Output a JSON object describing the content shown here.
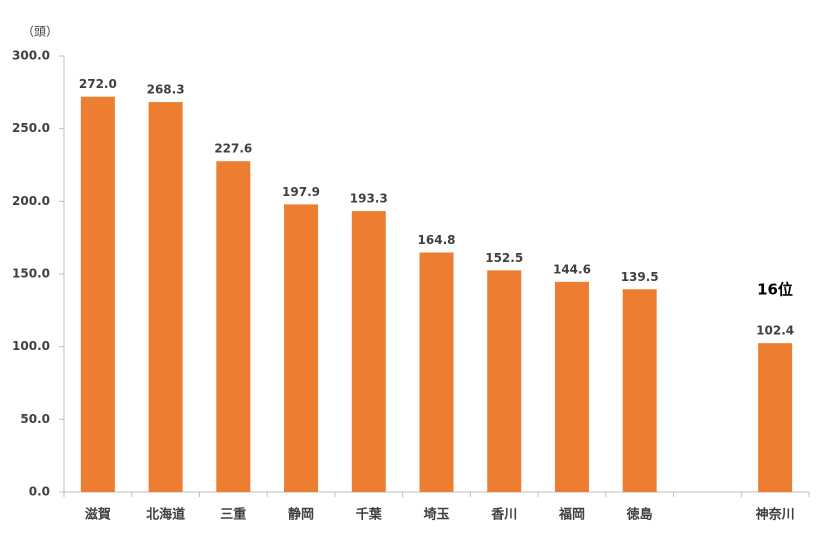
{
  "chart_data": {
    "type": "bar",
    "y_unit_label": "（頭）",
    "annotation": "16位",
    "categories": [
      "滋賀",
      "北海道",
      "三重",
      "静岡",
      "千葉",
      "埼玉",
      "香川",
      "福岡",
      "徳島",
      null,
      "神奈川"
    ],
    "values": [
      272.0,
      268.3,
      227.6,
      197.9,
      193.3,
      164.8,
      152.5,
      144.6,
      139.5,
      null,
      102.4
    ],
    "value_labels": [
      "272.0",
      "268.3",
      "227.6",
      "197.9",
      "193.3",
      "164.8",
      "152.5",
      "144.6",
      "139.5",
      null,
      "102.4"
    ],
    "color": "#ed7d31",
    "ylim": [
      0,
      300
    ],
    "yticks": [
      {
        "value": 0,
        "label": "0.0"
      },
      {
        "value": 50,
        "label": "50.0"
      },
      {
        "value": 100,
        "label": "100.0"
      },
      {
        "value": 150,
        "label": "150.0"
      },
      {
        "value": 200,
        "label": "200.0"
      },
      {
        "value": 250,
        "label": "250.0"
      },
      {
        "value": 300,
        "label": "300.0"
      }
    ],
    "grid": false
  }
}
